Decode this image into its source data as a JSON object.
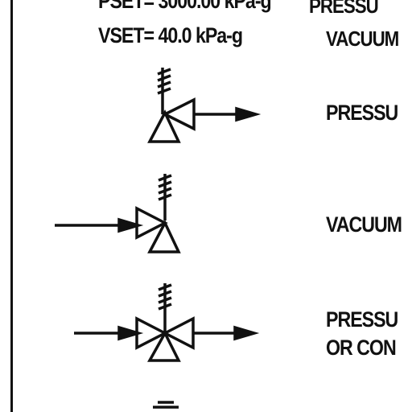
{
  "header": {
    "pset_text": "PSET= 3000.00 kPa-g",
    "vset_text": "VSET= 40.0 kPa-g",
    "pressure_text": "PRESSU",
    "vacuum_text": "VACUUM"
  },
  "legend_rows": [
    {
      "description": "PRESSU"
    },
    {
      "description": "VACUUM"
    },
    {
      "description_line1": "PRESSU",
      "description_line2": "OR CON"
    }
  ],
  "colors": {
    "ink": "#111111",
    "background": "#ffffff"
  }
}
